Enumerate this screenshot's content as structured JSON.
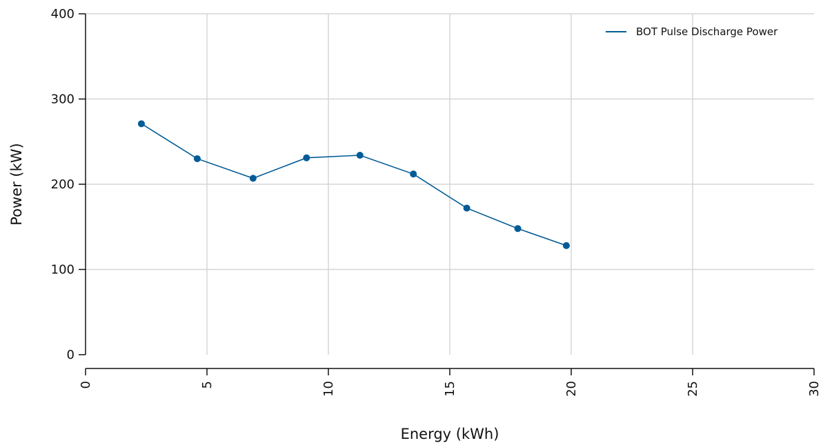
{
  "chart_data": {
    "type": "line",
    "title": "",
    "xlabel": "Energy (kWh)",
    "ylabel": "Power (kW)",
    "xlim": [
      0,
      30
    ],
    "ylim": [
      0,
      400
    ],
    "x_ticks": [
      0,
      5,
      10,
      15,
      20,
      25,
      30
    ],
    "y_ticks": [
      0,
      100,
      200,
      300,
      400
    ],
    "x_tick_labels": [
      "0",
      "5",
      "10",
      "15",
      "20",
      "25",
      "30"
    ],
    "y_tick_labels": [
      "0",
      "100",
      "200",
      "300",
      "400"
    ],
    "grid": true,
    "legend_position": "top-right",
    "series": [
      {
        "name": "BOT Pulse Discharge Power",
        "color": "#005b96",
        "x": [
          2.3,
          4.6,
          6.9,
          9.1,
          11.3,
          13.5,
          15.7,
          17.8,
          19.8
        ],
        "y": [
          271,
          230,
          207,
          231,
          234,
          212,
          172,
          148,
          128
        ]
      }
    ]
  }
}
